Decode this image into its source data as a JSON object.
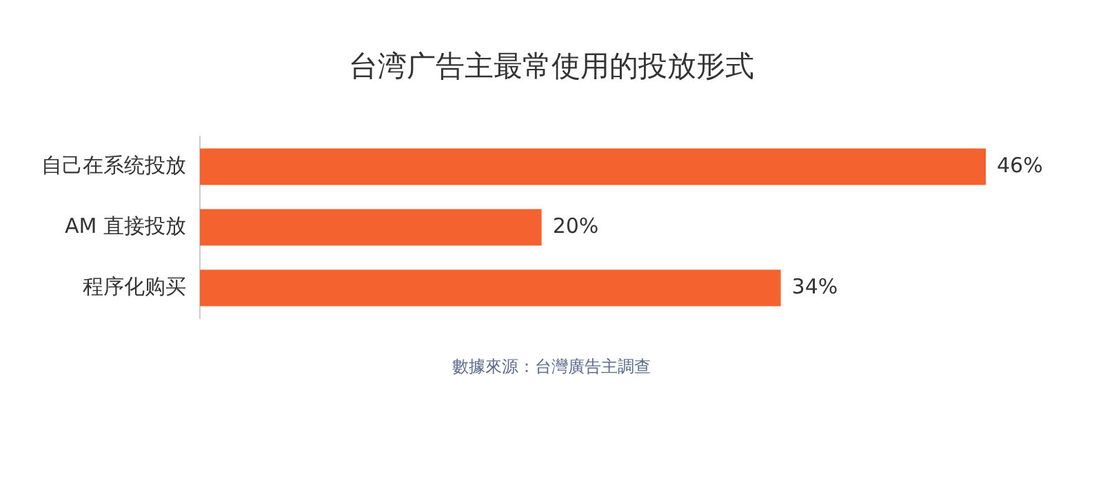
{
  "chart_data": {
    "type": "bar",
    "orientation": "horizontal",
    "title": "台湾广告主最常使用的投放形式",
    "categories": [
      "自己在系统投放",
      "AM 直接投放",
      "程序化购买"
    ],
    "values": [
      46,
      20,
      34
    ],
    "value_labels": [
      "46%",
      "20%",
      "34%"
    ],
    "color": "#f4622f",
    "xlim": [
      0,
      46
    ],
    "tick_labels": "y",
    "grid": false,
    "legend": false,
    "annotations": [
      "數據來源：台灣廣告主調查"
    ]
  }
}
